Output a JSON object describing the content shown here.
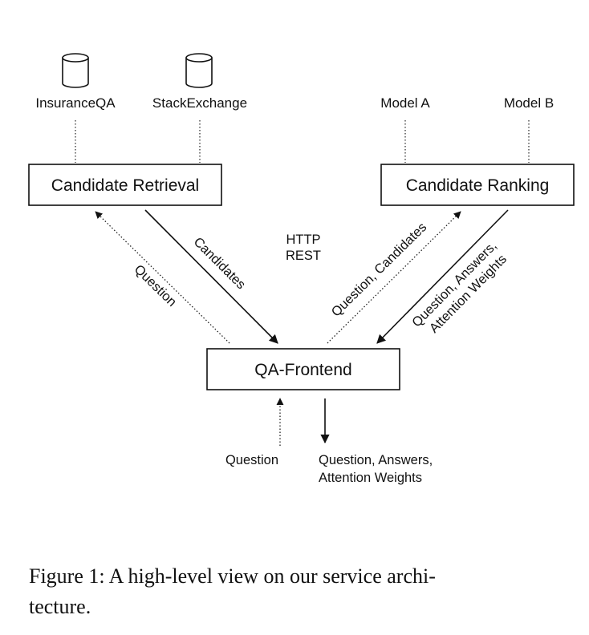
{
  "databases": [
    {
      "id": "insuranceqa",
      "label": "InsuranceQA"
    },
    {
      "id": "stackexchange",
      "label": "StackExchange"
    }
  ],
  "models": [
    {
      "id": "model-a",
      "label": "Model A"
    },
    {
      "id": "model-b",
      "label": "Model B"
    }
  ],
  "boxes": {
    "retrieval": "Candidate Retrieval",
    "ranking": "Candidate Ranking",
    "frontend": "QA-Frontend"
  },
  "protocol": {
    "line1": "HTTP",
    "line2": "REST"
  },
  "edges": {
    "retrieval_question": "Question",
    "retrieval_candidates": "Candidates",
    "ranking_request": "Question, Candidates",
    "ranking_response_line1": "Question, Answers,",
    "ranking_response_line2": "Attention Weights",
    "input_question": "Question",
    "output_line1": "Question, Answers,",
    "output_line2": "Attention Weights"
  },
  "caption": {
    "line1": "Figure 1:  A high-level view on our service archi-",
    "line2": "tecture."
  }
}
